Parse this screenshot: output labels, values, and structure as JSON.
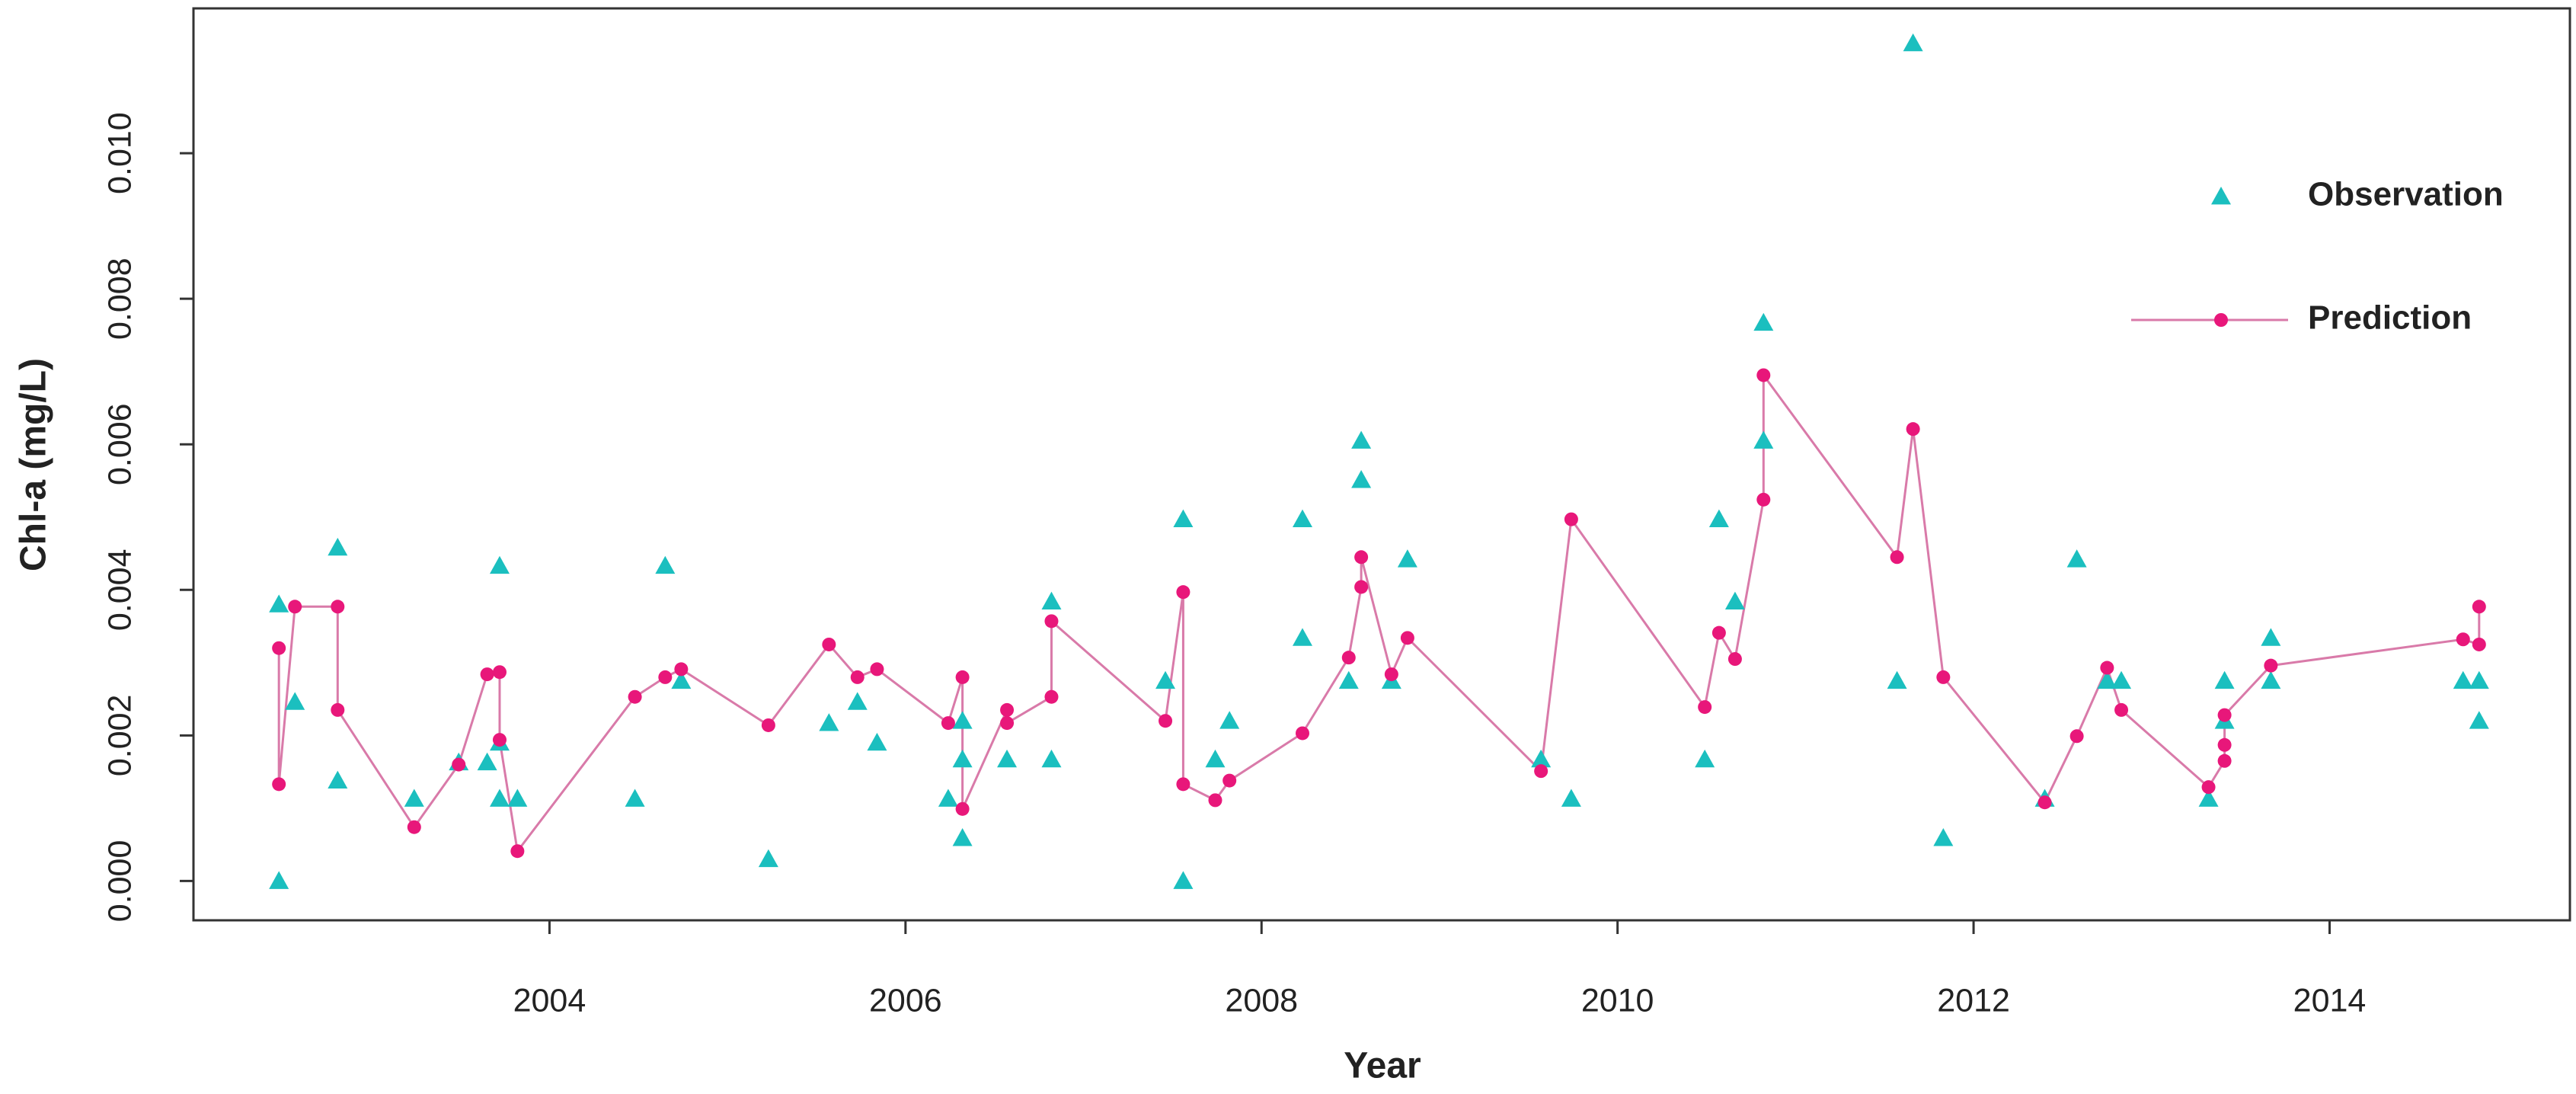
{
  "chart_data": {
    "type": "scatter",
    "xlabel": "Year",
    "ylabel": "Chl-a (mg/L)",
    "xlim": [
      2002.0,
      2015.35
    ],
    "ylim": [
      -0.00054,
      0.01199
    ],
    "xticks": [
      2004,
      2006,
      2008,
      2010,
      2012,
      2014
    ],
    "yticks": [
      {
        "value": 0,
        "label": "0.000"
      },
      {
        "value": 0.002,
        "label": "0.002"
      },
      {
        "value": 0.004,
        "label": "0.004"
      },
      {
        "value": 0.006,
        "label": "0.006"
      },
      {
        "value": 0.008,
        "label": "0.008"
      },
      {
        "value": 0.01,
        "label": "0.010"
      }
    ],
    "legend": "upper right",
    "series": [
      {
        "name": "Observation",
        "color": "#1bbfbf",
        "marker": "triangle",
        "lines": false,
        "x": [
          2002.48,
          2002.48,
          2002.57,
          2002.81,
          2002.81,
          2003.24,
          2003.49,
          2003.65,
          2003.72,
          2003.72,
          2003.72,
          2003.82,
          2004.48,
          2004.65,
          2004.74,
          2005.23,
          2005.57,
          2005.73,
          2005.84,
          2006.24,
          2006.32,
          2006.32,
          2006.32,
          2006.57,
          2006.82,
          2006.82,
          2007.46,
          2007.56,
          2007.56,
          2007.74,
          2007.82,
          2008.23,
          2008.23,
          2008.49,
          2008.56,
          2008.56,
          2008.73,
          2008.82,
          2009.57,
          2009.74,
          2010.49,
          2010.57,
          2010.66,
          2010.82,
          2010.82,
          2011.57,
          2011.66,
          2011.83,
          2012.4,
          2012.58,
          2012.75,
          2012.83,
          2013.32,
          2013.41,
          2013.41,
          2013.67,
          2013.67,
          2014.75,
          2014.84,
          2014.84
        ],
        "values": [
          0.0038,
          0.0,
          0.00246,
          0.00458,
          0.00138,
          0.00113,
          0.00163,
          0.00163,
          0.00433,
          0.0019,
          0.00113,
          0.00113,
          0.00113,
          0.00433,
          0.00275,
          0.0003,
          0.00217,
          0.00246,
          0.0019,
          0.00113,
          0.0022,
          0.00167,
          0.00059,
          0.00167,
          0.00384,
          0.00167,
          0.00275,
          0.00497,
          0.0,
          0.00167,
          0.0022,
          0.00497,
          0.00334,
          0.00275,
          0.00605,
          0.00551,
          0.00275,
          0.00442,
          0.00167,
          0.00113,
          0.00167,
          0.00497,
          0.00384,
          0.00767,
          0.00605,
          0.00275,
          0.01151,
          0.00059,
          0.00113,
          0.00442,
          0.00275,
          0.00275,
          0.00113,
          0.00275,
          0.0022,
          0.00334,
          0.00275,
          0.00275,
          0.00275,
          0.0022
        ]
      },
      {
        "name": "Prediction",
        "color": "#e8177a",
        "line_color": "#d97aa9",
        "marker": "circle",
        "lines": true,
        "x": [
          2002.48,
          2002.48,
          2002.57,
          2002.81,
          2002.81,
          2003.24,
          2003.49,
          2003.65,
          2003.72,
          2003.72,
          2003.82,
          2004.48,
          2004.65,
          2004.74,
          2005.23,
          2005.57,
          2005.73,
          2005.84,
          2006.24,
          2006.32,
          2006.32,
          2006.57,
          2006.57,
          2006.82,
          2006.82,
          2007.46,
          2007.56,
          2007.56,
          2007.74,
          2007.82,
          2008.23,
          2008.49,
          2008.56,
          2008.56,
          2008.73,
          2008.82,
          2009.57,
          2009.74,
          2010.49,
          2010.57,
          2010.66,
          2010.82,
          2010.82,
          2011.57,
          2011.66,
          2011.83,
          2012.4,
          2012.58,
          2012.75,
          2012.83,
          2013.32,
          2013.41,
          2013.41,
          2013.41,
          2013.67,
          2014.75,
          2014.84,
          2014.84
        ],
        "values": [
          0.0032,
          0.00133,
          0.00377,
          0.00377,
          0.00235,
          0.00074,
          0.0016,
          0.00284,
          0.00287,
          0.00194,
          0.00041,
          0.00253,
          0.0028,
          0.00291,
          0.00214,
          0.00325,
          0.0028,
          0.00291,
          0.00217,
          0.0028,
          0.00099,
          0.00235,
          0.00217,
          0.00253,
          0.00357,
          0.0022,
          0.00397,
          0.00133,
          0.00111,
          0.00138,
          0.00203,
          0.00307,
          0.00404,
          0.00445,
          0.00284,
          0.00334,
          0.00151,
          0.00497,
          0.00239,
          0.00341,
          0.00305,
          0.00524,
          0.00695,
          0.00445,
          0.00621,
          0.0028,
          0.00108,
          0.00199,
          0.00293,
          0.00235,
          0.00129,
          0.00165,
          0.00187,
          0.00228,
          0.00296,
          0.00332,
          0.00325,
          0.00377
        ]
      }
    ]
  }
}
